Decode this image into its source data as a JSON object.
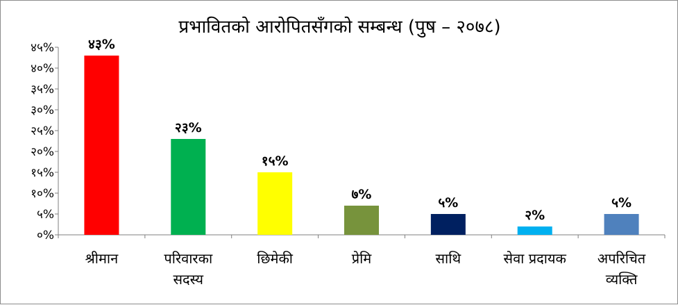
{
  "chart_data": {
    "type": "bar",
    "title": "प्रभावितको आरोपितसँगको सम्बन्ध (पुष – २०७८)",
    "categories": [
      [
        "श्रीमान"
      ],
      [
        "परिवारका",
        "सदस्य"
      ],
      [
        "छिमेकी"
      ],
      [
        "प्रेमि"
      ],
      [
        "साथि"
      ],
      [
        "सेवा प्रदायक"
      ],
      [
        "अपरिचित",
        "व्यक्ति"
      ]
    ],
    "values": [
      43,
      23,
      15,
      7,
      5,
      2,
      5
    ],
    "data_labels": [
      "४३%",
      "२३%",
      "१५%",
      "७%",
      "५%",
      "२%",
      "५%"
    ],
    "colors": [
      "#ff0000",
      "#00b050",
      "#ffff00",
      "#77933c",
      "#002060",
      "#00b0f0",
      "#4f81bd"
    ],
    "ylim": [
      0,
      45
    ],
    "yticks": [
      0,
      5,
      10,
      15,
      20,
      25,
      30,
      35,
      40,
      45
    ],
    "ytick_labels": [
      "०%",
      "५%",
      "१०%",
      "१५%",
      "२०%",
      "२५%",
      "३०%",
      "३५%",
      "४०%",
      "४५%"
    ],
    "xlabel": "",
    "ylabel": "",
    "grid": false,
    "legend": "none"
  }
}
